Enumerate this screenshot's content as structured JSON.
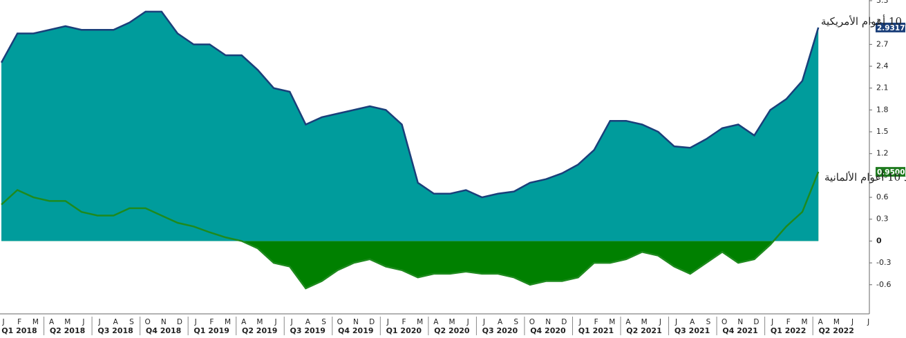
{
  "chart_data": {
    "type": "area",
    "categories": [
      "J",
      "F",
      "M",
      "A",
      "M",
      "J",
      "J",
      "A",
      "S",
      "O",
      "N",
      "D",
      "J",
      "F",
      "M",
      "A",
      "M",
      "J",
      "J",
      "A",
      "S",
      "O",
      "N",
      "D",
      "J",
      "F",
      "M",
      "A",
      "M",
      "J",
      "J",
      "A",
      "S",
      "O",
      "N",
      "D",
      "J",
      "F",
      "M",
      "A",
      "M",
      "J",
      "J",
      "A",
      "S",
      "O",
      "N",
      "D",
      "J",
      "F",
      "M",
      "A",
      "M",
      "J",
      "J"
    ],
    "quarters": [
      "Q1 2018",
      "Q2 2018",
      "Q3 2018",
      "Q4 2018",
      "Q1 2019",
      "Q2 2019",
      "Q3 2019",
      "Q4 2019",
      "Q1 2020",
      "Q2 2020",
      "Q3 2020",
      "Q4 2020",
      "Q1 2021",
      "Q2 2021",
      "Q3 2021",
      "Q4 2021",
      "Q1 2022",
      "Q2 2022"
    ],
    "series": [
      {
        "name": "عوائد 10 أعوام الألمانية",
        "color": "#1e8a1e",
        "fill": "#008000",
        "label_color": "#1e7a1e",
        "values": [
          0.5,
          0.7,
          0.6,
          0.55,
          0.55,
          0.4,
          0.35,
          0.35,
          0.45,
          0.45,
          0.35,
          0.25,
          0.2,
          0.12,
          0.05,
          0.0,
          -0.1,
          -0.3,
          -0.35,
          -0.65,
          -0.55,
          -0.4,
          -0.3,
          -0.25,
          -0.35,
          -0.4,
          -0.5,
          -0.45,
          -0.45,
          -0.42,
          -0.45,
          -0.45,
          -0.5,
          -0.6,
          -0.55,
          -0.55,
          -0.5,
          -0.3,
          -0.3,
          -0.25,
          -0.15,
          -0.2,
          -0.35,
          -0.45,
          -0.3,
          -0.15,
          -0.3,
          -0.25,
          -0.05,
          0.2,
          0.4,
          0.95,
          null,
          null,
          null
        ],
        "value_labels": [
          null,
          null,
          null,
          null,
          null,
          null,
          null,
          null,
          null,
          null,
          null,
          null,
          null,
          null,
          null,
          null,
          null,
          null,
          null,
          null,
          null,
          null,
          null,
          null,
          null,
          null,
          null,
          null,
          null,
          null,
          null,
          null,
          null,
          null,
          null,
          null,
          null,
          null,
          null,
          null,
          null,
          null,
          null,
          null,
          null,
          null,
          null,
          null,
          null,
          null,
          null,
          "0.9500",
          null,
          null,
          null
        ]
      },
      {
        "name": "عوائد 10 أعوام الأمريكية",
        "color": "#1a3f7a",
        "fill": "#009c9c",
        "label_color": "#1a3f7a",
        "values": [
          2.45,
          2.85,
          2.85,
          2.9,
          2.95,
          2.9,
          2.9,
          2.9,
          3.0,
          3.15,
          3.15,
          2.85,
          2.7,
          2.7,
          2.55,
          2.55,
          2.35,
          2.1,
          2.05,
          1.6,
          1.7,
          1.75,
          1.8,
          1.85,
          1.8,
          1.6,
          0.8,
          0.65,
          0.65,
          0.7,
          0.6,
          0.65,
          0.68,
          0.8,
          0.85,
          0.93,
          1.05,
          1.25,
          1.65,
          1.65,
          1.6,
          1.5,
          1.3,
          1.28,
          1.4,
          1.55,
          1.6,
          1.45,
          1.8,
          1.95,
          2.2,
          2.9317,
          null,
          null,
          null
        ],
        "value_labels": [
          null,
          null,
          null,
          null,
          null,
          null,
          null,
          null,
          null,
          null,
          null,
          null,
          null,
          null,
          null,
          null,
          null,
          null,
          null,
          null,
          null,
          null,
          null,
          null,
          null,
          null,
          null,
          null,
          null,
          null,
          null,
          null,
          null,
          null,
          null,
          null,
          null,
          null,
          null,
          null,
          null,
          null,
          null,
          null,
          null,
          null,
          null,
          null,
          null,
          null,
          null,
          "2.9317",
          null,
          null,
          null
        ]
      }
    ],
    "ylim": [
      -1.0,
      3.3
    ],
    "yticks": [
      -0.6,
      -0.3,
      0,
      0.3,
      0.6,
      0.9,
      1.2,
      1.5,
      1.8,
      2.1,
      2.4,
      2.7,
      3,
      3.3
    ]
  }
}
